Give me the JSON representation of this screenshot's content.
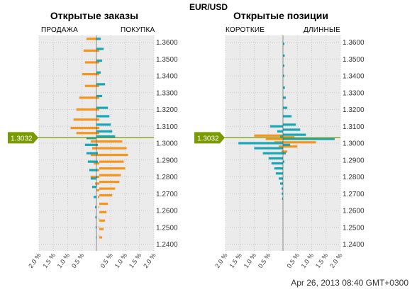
{
  "title": "EUR/USD",
  "timestamp": "Apr 26, 2013 08:40 GMT+0300",
  "colors": {
    "orange": "#f7941d",
    "teal": "#17a7b7",
    "green": "#7a9a01",
    "grid": "#bdbdbd",
    "plot_bg": "#ebebeb"
  },
  "chart_data": [
    {
      "type": "bar",
      "title": "Открытые заказы",
      "left_label": "ПРОДАЖА",
      "right_label": "ПОКУПКА",
      "current_price": "1.3032",
      "xlim": [
        -2.0,
        2.0
      ],
      "xticks": [
        "2.0 %",
        "1.5 %",
        "1.0 %",
        "0.5 %",
        "0.5 %",
        "1.0 %",
        "1.5 %",
        "2.0 %"
      ],
      "ylim": [
        1.236,
        1.364
      ],
      "yticks": [
        "1.3600",
        "1.3500",
        "1.3400",
        "1.3300",
        "1.3200",
        "1.3100",
        "1.3000",
        "1.2900",
        "1.2800",
        "1.2700",
        "1.2600",
        "1.2500",
        "1.2400"
      ],
      "orange_axis_shift_pct": 0.1,
      "series": [
        {
          "name": "ПРОДАЖА",
          "color": "#f7941d",
          "side": "left",
          "y": [
            1.362,
            1.355,
            1.348,
            1.341,
            1.334,
            1.327,
            1.32,
            1.314,
            1.309,
            1.306,
            1.301,
            1.297,
            1.293,
            1.288,
            1.284,
            1.28,
            1.276,
            1.272,
            1.268,
            1.262,
            1.255,
            1.25,
            1.245
          ],
          "values": [
            0.45,
            0.55,
            0.5,
            0.6,
            0.5,
            0.7,
            0.8,
            0.9,
            1.0,
            0.8,
            0.3,
            0.25,
            0.3,
            0.2,
            0.25,
            0.3,
            0.15,
            0.1,
            0.05,
            0.03,
            0.02,
            0.02,
            0.01
          ]
        },
        {
          "name": "ПОКУПКА",
          "color": "#f7941d",
          "side": "right",
          "y": [
            1.301,
            1.297,
            1.293,
            1.289,
            1.285,
            1.281,
            1.277,
            1.273,
            1.269,
            1.264,
            1.259,
            1.254,
            1.249,
            1.244
          ],
          "values": [
            0.8,
            0.95,
            1.0,
            0.85,
            0.9,
            0.75,
            0.7,
            0.55,
            0.45,
            0.3,
            0.25,
            0.2,
            0.15,
            0.1
          ]
        },
        {
          "name": "ПРОДАЖА",
          "color": "#17a7b7",
          "side": "left",
          "y": [
            1.303,
            1.299,
            1.294,
            1.289,
            1.284,
            1.279,
            1.274,
            1.268,
            1.262,
            1.256,
            1.25,
            1.244
          ],
          "values": [
            0.35,
            0.4,
            0.35,
            0.3,
            0.25,
            0.2,
            0.15,
            0.1,
            0.05,
            0.04,
            0.03,
            0.02
          ]
        },
        {
          "name": "ПОКУПКА",
          "color": "#17a7b7",
          "side": "right",
          "y": [
            1.362,
            1.356,
            1.349,
            1.342,
            1.335,
            1.328,
            1.321,
            1.316,
            1.311,
            1.307,
            1.304,
            1.299,
            1.294,
            1.289,
            1.284,
            1.28,
            1.275
          ],
          "values": [
            0.15,
            0.25,
            0.2,
            0.15,
            0.3,
            0.2,
            0.4,
            0.45,
            0.5,
            0.55,
            0.65,
            0.05,
            0.05,
            0.05,
            0.04,
            0.03,
            0.02
          ]
        }
      ]
    },
    {
      "type": "bar",
      "title": "Открытые позиции",
      "left_label": "КОРОТКИЕ",
      "right_label": "ДЛИННЫЕ",
      "current_price": "1.3032",
      "xlim": [
        -2.0,
        2.0
      ],
      "xticks": [
        "2.0 %",
        "1.5 %",
        "1.0 %",
        "0.5 %",
        "0.5 %",
        "1.0 %",
        "1.5 %",
        "2.0 %"
      ],
      "ylim": [
        1.236,
        1.364
      ],
      "yticks": [
        "1.3600",
        "1.3500",
        "1.3400",
        "1.3300",
        "1.3200",
        "1.3100",
        "1.3000",
        "1.2900",
        "1.2800",
        "1.2700",
        "1.2600",
        "1.2500",
        "1.2400"
      ],
      "series": [
        {
          "name": "КОРОТКИЕ",
          "color": "#f7941d",
          "side": "left",
          "y": [
            1.3045,
            1.3025,
            1.3005,
            1.298,
            1.295
          ],
          "values": [
            1.0,
            0.6,
            0.3,
            0.15,
            0.05
          ]
        },
        {
          "name": "ДЛИННЫЕ",
          "color": "#f7941d",
          "side": "right",
          "y": [
            1.3035,
            1.3005,
            1.298,
            1.295
          ],
          "values": [
            0.4,
            1.15,
            0.5,
            0.15
          ]
        },
        {
          "name": "КОРОТКИЕ",
          "color": "#17a7b7",
          "side": "left",
          "y": [
            1.31,
            1.307,
            1.304,
            1.3,
            1.297,
            1.294,
            1.291,
            1.288,
            1.285,
            1.282,
            1.279,
            1.276,
            1.273,
            1.27,
            1.267
          ],
          "values": [
            0.45,
            0.2,
            0.1,
            1.55,
            1.0,
            0.7,
            0.5,
            0.4,
            0.3,
            0.25,
            0.15,
            0.1,
            0.05,
            0.04,
            0.03
          ]
        },
        {
          "name": "ДЛИННЫЕ",
          "color": "#17a7b7",
          "side": "right",
          "y": [
            1.359,
            1.352,
            1.346,
            1.34,
            1.333,
            1.327,
            1.321,
            1.316,
            1.311,
            1.308,
            1.305,
            1.3025,
            1.299,
            1.294,
            1.289
          ],
          "values": [
            0.05,
            0.06,
            0.05,
            0.05,
            0.07,
            0.1,
            0.15,
            0.3,
            0.45,
            0.6,
            0.8,
            1.8,
            0.25,
            0.1,
            0.05
          ]
        }
      ]
    }
  ]
}
